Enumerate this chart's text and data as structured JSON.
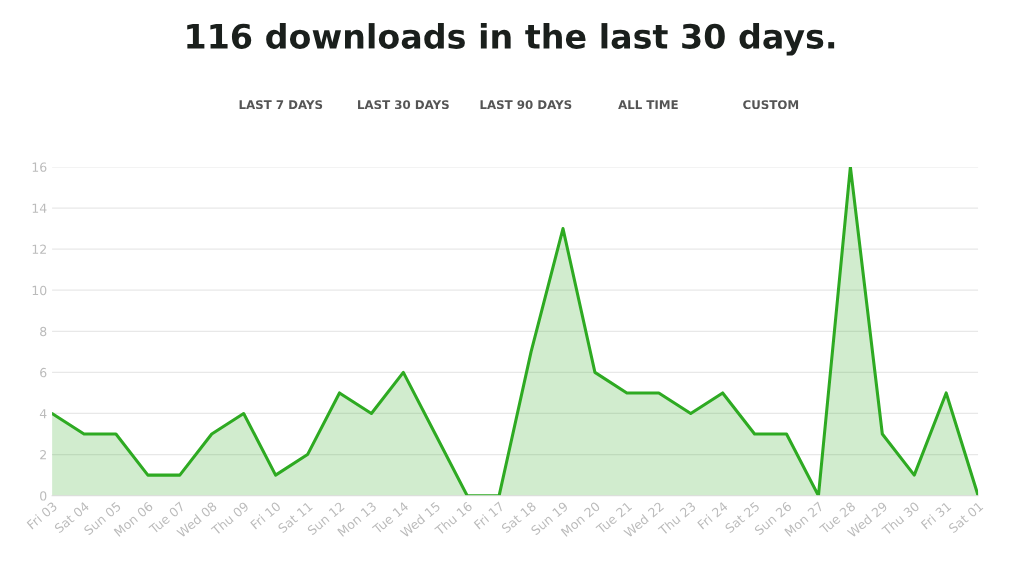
{
  "chart_data": {
    "type": "area",
    "title": "116 downloads in the last 30 days.",
    "annotations": [
      "LAST 7 DAYS",
      "LAST 30 DAYS",
      "LAST 90 DAYS",
      "ALL TIME",
      "CUSTOM"
    ],
    "categories": [
      "Fri 03",
      "Sat 04",
      "Sun 05",
      "Mon 06",
      "Tue 07",
      "Wed 08",
      "Thu 09",
      "Fri 10",
      "Sat 11",
      "Sun 12",
      "Mon 13",
      "Tue 14",
      "Wed 15",
      "Thu 16",
      "Fri 17",
      "Sat 18",
      "Sun 19",
      "Mon 20",
      "Tue 21",
      "Wed 22",
      "Thu 23",
      "Fri 24",
      "Sat 25",
      "Sun 26",
      "Mon 27",
      "Tue 28",
      "Wed 29",
      "Thu 30",
      "Fri 31",
      "Sat 01"
    ],
    "values": [
      4,
      3,
      3,
      1,
      1,
      3,
      4,
      1,
      2,
      5,
      4,
      6,
      3,
      0,
      0,
      7,
      13,
      6,
      5,
      5,
      4,
      5,
      3,
      3,
      0,
      16,
      3,
      1,
      5,
      0
    ],
    "color": "#2eaa22",
    "ylim": [
      0,
      16
    ],
    "yticks": [
      0,
      2,
      4,
      6,
      8,
      10,
      12,
      14,
      16
    ],
    "grid": "y",
    "legend": false
  }
}
